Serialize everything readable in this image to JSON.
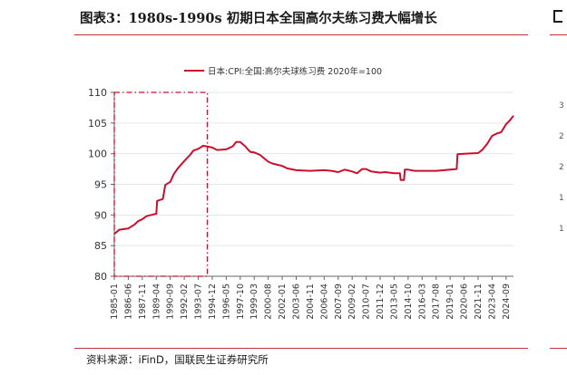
{
  "title": "图表3：1980s-1990s 初期日本全国高尔夫练习费大幅增长",
  "source": "资料来源：iFinD，国联民生证券研究所",
  "colors": {
    "accent": "#c8102e",
    "rule": "#c0323e",
    "axis": "#666666",
    "grid": "#e6e6e6"
  },
  "right_panel": {
    "icon": "bracket-icon",
    "ticks": [
      "3",
      "2",
      "2",
      "1",
      "1"
    ]
  },
  "chart_data": {
    "type": "line",
    "legend_position": "top-center",
    "grid": true,
    "ylim": [
      80,
      110
    ],
    "yticks": [
      "80",
      "85",
      "90",
      "95",
      "100",
      "105",
      "110"
    ],
    "xticks": [
      "1985-01",
      "1986-06",
      "1987-11",
      "1989-04",
      "1990-09",
      "1992-02",
      "1993-07",
      "1994-12",
      "1996-05",
      "1997-10",
      "1999-03",
      "2000-08",
      "2002-01",
      "2003-06",
      "2004-11",
      "2006-04",
      "2007-09",
      "2009-02",
      "2010-07",
      "2011-12",
      "2013-05",
      "2014-10",
      "2016-03",
      "2017-08",
      "2019-01",
      "2020-06",
      "2021-11",
      "2023-04",
      "2024-09"
    ],
    "x_start": "1985-01",
    "x_end": "2025-06",
    "series": [
      {
        "name": "日本:CPI:全国:高尔夫球练习费 2020年=100",
        "color": "#c8102e",
        "points": [
          [
            "1985-01",
            86.9
          ],
          [
            "1985-07",
            87.6
          ],
          [
            "1986-06",
            87.8
          ],
          [
            "1987-01",
            88.4
          ],
          [
            "1987-06",
            89.0
          ],
          [
            "1987-11",
            89.3
          ],
          [
            "1988-04",
            89.8
          ],
          [
            "1988-10",
            90.0
          ],
          [
            "1989-04",
            90.2
          ],
          [
            "1989-05",
            92.3
          ],
          [
            "1989-12",
            92.6
          ],
          [
            "1990-03",
            94.9
          ],
          [
            "1990-09",
            95.4
          ],
          [
            "1991-01",
            96.6
          ],
          [
            "1991-06",
            97.6
          ],
          [
            "1992-02",
            98.8
          ],
          [
            "1992-09",
            99.8
          ],
          [
            "1993-01",
            100.5
          ],
          [
            "1993-07",
            100.8
          ],
          [
            "1994-01",
            101.3
          ],
          [
            "1994-12",
            101.0
          ],
          [
            "1995-06",
            100.6
          ],
          [
            "1996-05",
            100.7
          ],
          [
            "1997-01",
            101.2
          ],
          [
            "1997-05",
            101.9
          ],
          [
            "1997-10",
            101.9
          ],
          [
            "1998-04",
            101.2
          ],
          [
            "1998-10",
            100.3
          ],
          [
            "1999-03",
            100.2
          ],
          [
            "1999-10",
            99.8
          ],
          [
            "2000-08",
            98.7
          ],
          [
            "2001-01",
            98.4
          ],
          [
            "2002-01",
            98.0
          ],
          [
            "2002-07",
            97.6
          ],
          [
            "2003-06",
            97.3
          ],
          [
            "2004-11",
            97.2
          ],
          [
            "2006-04",
            97.3
          ],
          [
            "2007-01",
            97.2
          ],
          [
            "2007-09",
            97.0
          ],
          [
            "2008-05",
            97.4
          ],
          [
            "2009-02",
            97.1
          ],
          [
            "2009-08",
            96.8
          ],
          [
            "2010-02",
            97.5
          ],
          [
            "2010-07",
            97.5
          ],
          [
            "2011-01",
            97.1
          ],
          [
            "2011-12",
            96.9
          ],
          [
            "2012-06",
            97.0
          ],
          [
            "2013-05",
            96.8
          ],
          [
            "2013-12",
            96.8
          ],
          [
            "2014-01",
            95.7
          ],
          [
            "2014-05",
            95.7
          ],
          [
            "2014-06",
            97.4
          ],
          [
            "2014-10",
            97.4
          ],
          [
            "2015-06",
            97.2
          ],
          [
            "2016-03",
            97.2
          ],
          [
            "2017-08",
            97.2
          ],
          [
            "2018-06",
            97.3
          ],
          [
            "2019-01",
            97.4
          ],
          [
            "2019-09",
            97.5
          ],
          [
            "2019-10",
            99.9
          ],
          [
            "2020-06",
            100.0
          ],
          [
            "2021-11",
            100.1
          ],
          [
            "2022-04",
            100.6
          ],
          [
            "2022-10",
            101.6
          ],
          [
            "2023-04",
            102.9
          ],
          [
            "2023-10",
            103.3
          ],
          [
            "2024-03",
            103.5
          ],
          [
            "2024-09",
            104.8
          ],
          [
            "2025-02",
            105.5
          ],
          [
            "2025-06",
            106.2
          ]
        ]
      }
    ],
    "highlight": {
      "x_from": "1985-01",
      "x_to": "1994-06",
      "y_from": 80,
      "y_to": 110
    }
  }
}
